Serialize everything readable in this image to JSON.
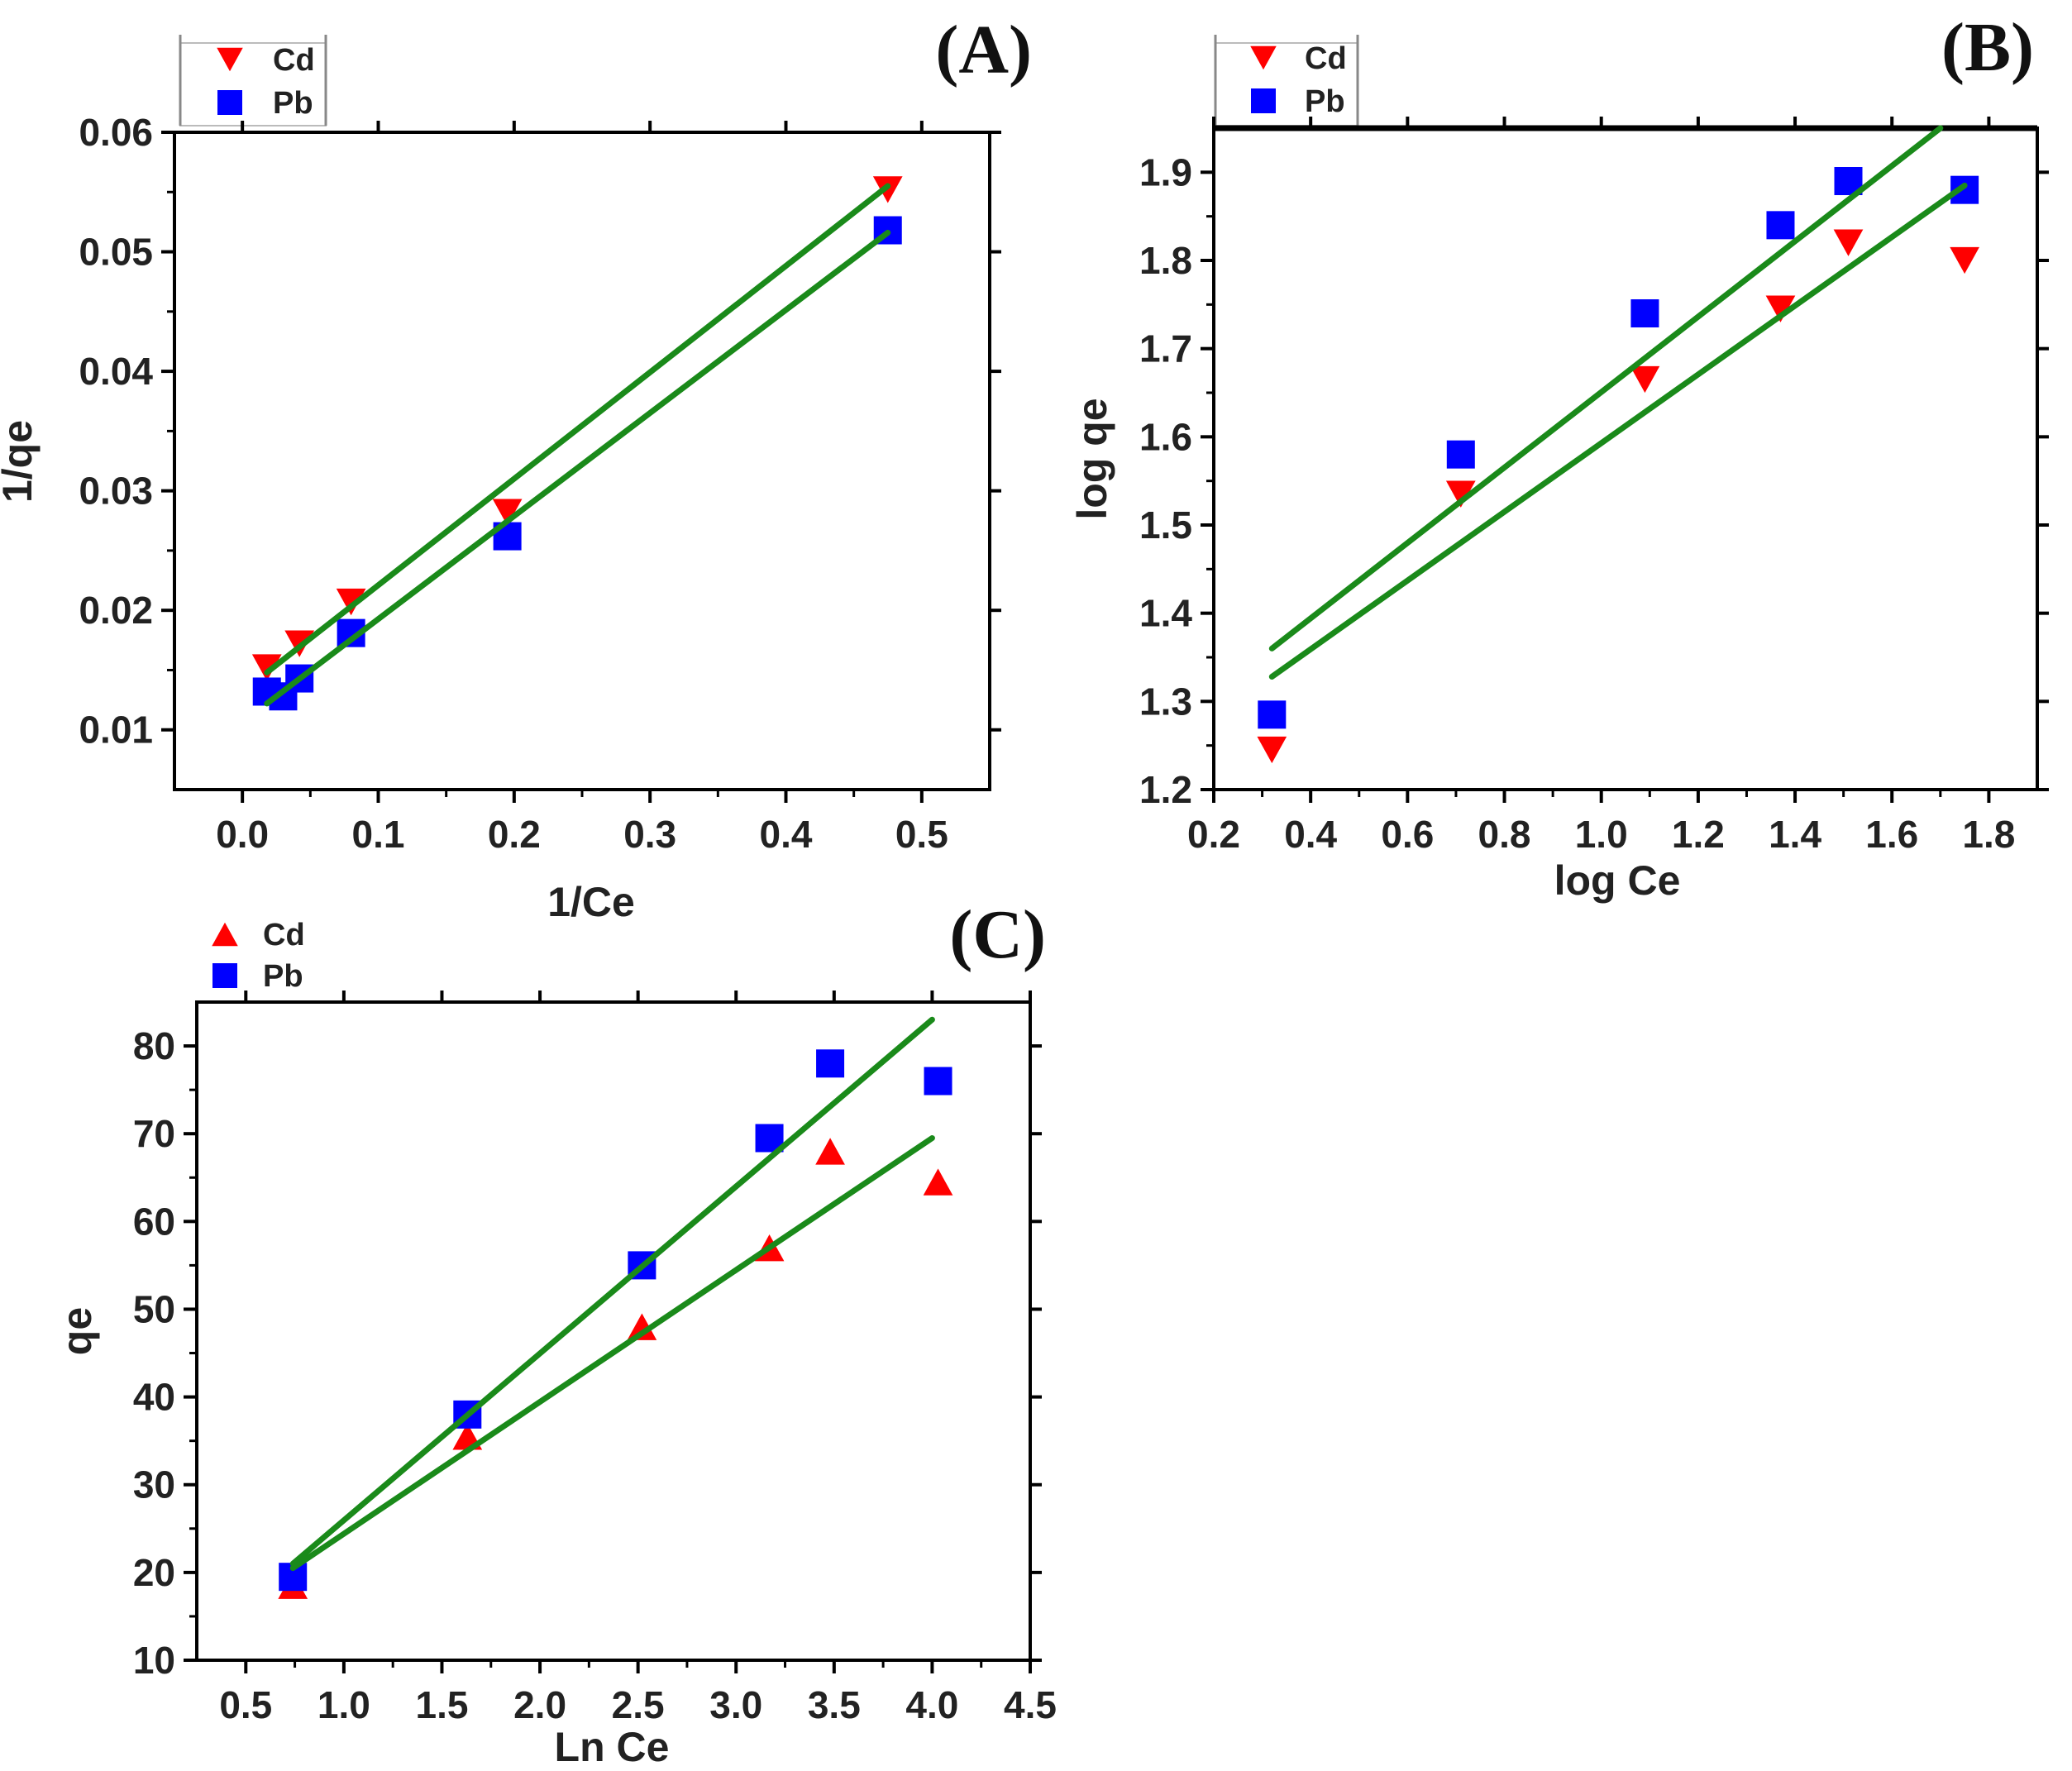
{
  "colors": {
    "cd": "#ff0000",
    "pb": "#0000ff",
    "fit": "#1a8a1a",
    "axis": "#000000"
  },
  "chart_data": [
    {
      "panel": "(A)",
      "type": "scatter",
      "xlabel": "1/Ce",
      "ylabel": "1/qe",
      "xlim": [
        -0.05,
        0.55
      ],
      "ylim": [
        0.005,
        0.06
      ],
      "xticks": [
        0.0,
        0.1,
        0.2,
        0.3,
        0.4,
        0.5
      ],
      "xtick_labels": [
        "0.0",
        "0.1",
        "0.2",
        "0.3",
        "0.4",
        "0.5"
      ],
      "yticks": [
        0.01,
        0.02,
        0.03,
        0.04,
        0.05,
        0.06
      ],
      "ytick_labels": [
        "0.01",
        "0.02",
        "0.03",
        "0.04",
        "0.05",
        "0.06"
      ],
      "legend": [
        {
          "label": "Cd",
          "marker": "triangle-down"
        },
        {
          "label": "Pb",
          "marker": "square"
        }
      ],
      "series": [
        {
          "name": "Cd",
          "marker": "triangle-down",
          "x": [
            0.018,
            0.042,
            0.08,
            0.195,
            0.475
          ],
          "y": [
            0.0152,
            0.0172,
            0.0207,
            0.0282,
            0.0552
          ]
        },
        {
          "name": "Pb",
          "marker": "square",
          "x": [
            0.018,
            0.03,
            0.042,
            0.08,
            0.195,
            0.475
          ],
          "y": [
            0.0132,
            0.0128,
            0.0143,
            0.0181,
            0.0262,
            0.0518
          ]
        }
      ],
      "fits": [
        {
          "name": "Cd fit",
          "x": [
            0.018,
            0.475
          ],
          "y": [
            0.0148,
            0.0555
          ]
        },
        {
          "name": "Pb fit",
          "x": [
            0.018,
            0.475
          ],
          "y": [
            0.0122,
            0.0516
          ]
        }
      ]
    },
    {
      "panel": "(B)",
      "type": "scatter",
      "xlabel": "log Ce",
      "ylabel": "log qe",
      "xlim": [
        0.2,
        1.9
      ],
      "ylim": [
        1.2,
        1.95
      ],
      "xticks": [
        0.2,
        0.4,
        0.6,
        0.8,
        1.0,
        1.2,
        1.4,
        1.6,
        1.8
      ],
      "xtick_labels": [
        "0.2",
        "0.4",
        "0.6",
        "0.8",
        "1.0",
        "1.2",
        "1.4",
        "1.6",
        "1.8"
      ],
      "yticks": [
        1.2,
        1.3,
        1.4,
        1.5,
        1.6,
        1.7,
        1.8,
        1.9
      ],
      "ytick_labels": [
        "1.2",
        "1.3",
        "1.4",
        "1.5",
        "1.6",
        "1.7",
        "1.8",
        "1.9"
      ],
      "legend": [
        {
          "label": "Cd",
          "marker": "triangle-down"
        },
        {
          "label": "Pb",
          "marker": "square"
        }
      ],
      "series": [
        {
          "name": "Cd",
          "marker": "triangle-down",
          "x": [
            0.32,
            0.71,
            1.09,
            1.37,
            1.51,
            1.75
          ],
          "y": [
            1.245,
            1.535,
            1.665,
            1.745,
            1.82,
            1.8
          ]
        },
        {
          "name": "Pb",
          "marker": "square",
          "x": [
            0.32,
            0.71,
            1.09,
            1.37,
            1.51,
            1.75
          ],
          "y": [
            1.285,
            1.58,
            1.74,
            1.84,
            1.89,
            1.88
          ]
        }
      ],
      "fits": [
        {
          "name": "Pb fit",
          "x": [
            0.32,
            1.7
          ],
          "y": [
            1.36,
            1.95
          ]
        },
        {
          "name": "Cd fit",
          "x": [
            0.32,
            1.75
          ],
          "y": [
            1.328,
            1.885
          ]
        }
      ]
    },
    {
      "panel": "(C)",
      "type": "scatter",
      "xlabel": "Ln Ce",
      "ylabel": "qe",
      "xlim": [
        0.25,
        4.5
      ],
      "ylim": [
        10,
        85
      ],
      "xticks": [
        0.5,
        1.0,
        1.5,
        2.0,
        2.5,
        3.0,
        3.5,
        4.0,
        4.5
      ],
      "xtick_labels": [
        "0.5",
        "1.0",
        "1.5",
        "2.0",
        "2.5",
        "3.0",
        "3.5",
        "4.0",
        "4.5"
      ],
      "yticks": [
        10,
        20,
        30,
        40,
        50,
        60,
        70,
        80
      ],
      "ytick_labels": [
        "10",
        "20",
        "30",
        "40",
        "50",
        "60",
        "70",
        "80"
      ],
      "legend": [
        {
          "label": "Cd",
          "marker": "triangle-up"
        },
        {
          "label": "Pb",
          "marker": "square"
        }
      ],
      "series": [
        {
          "name": "Cd",
          "marker": "triangle-up",
          "x": [
            0.74,
            1.63,
            2.52,
            3.17,
            3.48,
            4.03
          ],
          "y": [
            18.5,
            35.5,
            48,
            57,
            68,
            64.5
          ]
        },
        {
          "name": "Pb",
          "marker": "square",
          "x": [
            0.74,
            1.63,
            2.52,
            3.17,
            3.48,
            4.03
          ],
          "y": [
            19.5,
            38,
            55,
            69.5,
            78,
            76
          ]
        }
      ],
      "fits": [
        {
          "name": "Pb fit",
          "x": [
            0.74,
            4.0
          ],
          "y": [
            21,
            83
          ]
        },
        {
          "name": "Cd fit",
          "x": [
            0.74,
            4.0
          ],
          "y": [
            20.5,
            69.5
          ]
        }
      ]
    }
  ]
}
